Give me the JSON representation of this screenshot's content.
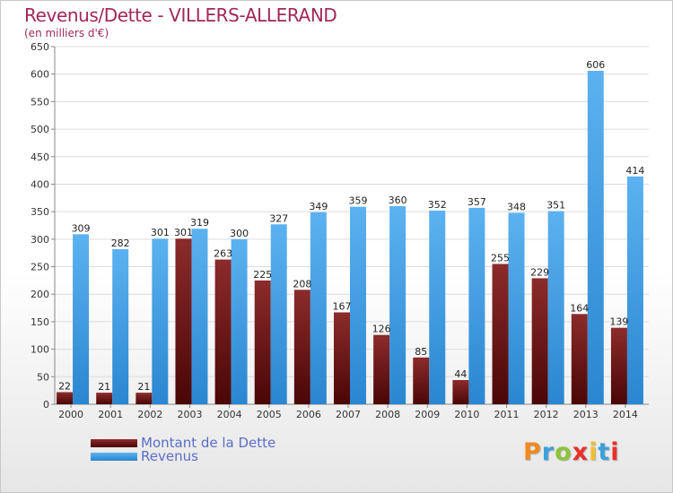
{
  "title": "Revenus/Dette - VILLERS-ALLERAND",
  "subtitle": "(en milliers d'€)",
  "logo": {
    "text": "Proxiti",
    "colors": [
      "#f08a1e",
      "#3aa0dc",
      "#8cc43c",
      "#e8302a",
      "#f0c02a",
      "#3aa0dc",
      "#e8302a"
    ]
  },
  "colors": {
    "dette": "#7a1a1a",
    "revenus": "#3f9fe6",
    "title": "#a0285a",
    "legend_text": "#5b6ec6"
  },
  "chart_data": {
    "type": "bar",
    "categories": [
      "2000",
      "2001",
      "2002",
      "2003",
      "2004",
      "2005",
      "2006",
      "2007",
      "2008",
      "2009",
      "2010",
      "2011",
      "2012",
      "2013",
      "2014"
    ],
    "series": [
      {
        "name": "Montant de la Dette",
        "values": [
          22,
          21,
          21,
          301,
          263,
          225,
          208,
          167,
          126,
          85,
          44,
          255,
          229,
          164,
          139
        ]
      },
      {
        "name": "Revenus",
        "values": [
          309,
          282,
          301,
          319,
          300,
          327,
          349,
          359,
          360,
          352,
          357,
          348,
          351,
          606,
          414
        ]
      }
    ],
    "ylim": [
      0,
      650
    ],
    "yticks": [
      0,
      50,
      100,
      150,
      200,
      250,
      300,
      350,
      400,
      450,
      500,
      550,
      600,
      650
    ],
    "grid": true,
    "legend_position": "bottom-left"
  }
}
